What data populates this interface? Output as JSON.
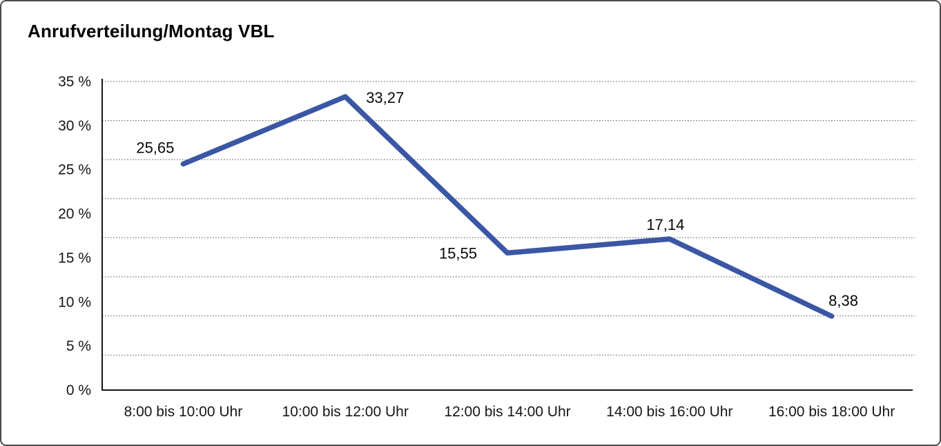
{
  "chart_data": {
    "type": "line",
    "title": "Anrufverteilung/Montag VBL",
    "categories": [
      "8:00 bis 10:00 Uhr",
      "10:00 bis 12:00 Uhr",
      "12:00 bis 14:00 Uhr",
      "14:00 bis 16:00 Uhr",
      "16:00 bis 18:00 Uhr"
    ],
    "values": [
      25.65,
      33.27,
      15.55,
      17.14,
      8.38
    ],
    "point_labels": [
      "25,65",
      "33,27",
      "15,55",
      "17,14",
      "8,38"
    ],
    "y_ticks": [
      {
        "value": 35,
        "label": "35 %"
      },
      {
        "value": 30,
        "label": "30 %"
      },
      {
        "value": 25,
        "label": "25 %"
      },
      {
        "value": 20,
        "label": "20 %"
      },
      {
        "value": 15,
        "label": "15 %"
      },
      {
        "value": 10,
        "label": "10 %"
      },
      {
        "value": 5,
        "label": "5 %"
      },
      {
        "value": 0,
        "label": "0 %"
      }
    ],
    "ylim": [
      0,
      35
    ],
    "xlabel": "",
    "ylabel": "",
    "grid": "horizontal-dotted",
    "legend": "none",
    "colors": {
      "line": "#3A56A5",
      "axis": "#141414",
      "gridline": "#555555",
      "text": "#111111",
      "background": "#FFFFFF",
      "border": "#4A4A4A"
    }
  }
}
